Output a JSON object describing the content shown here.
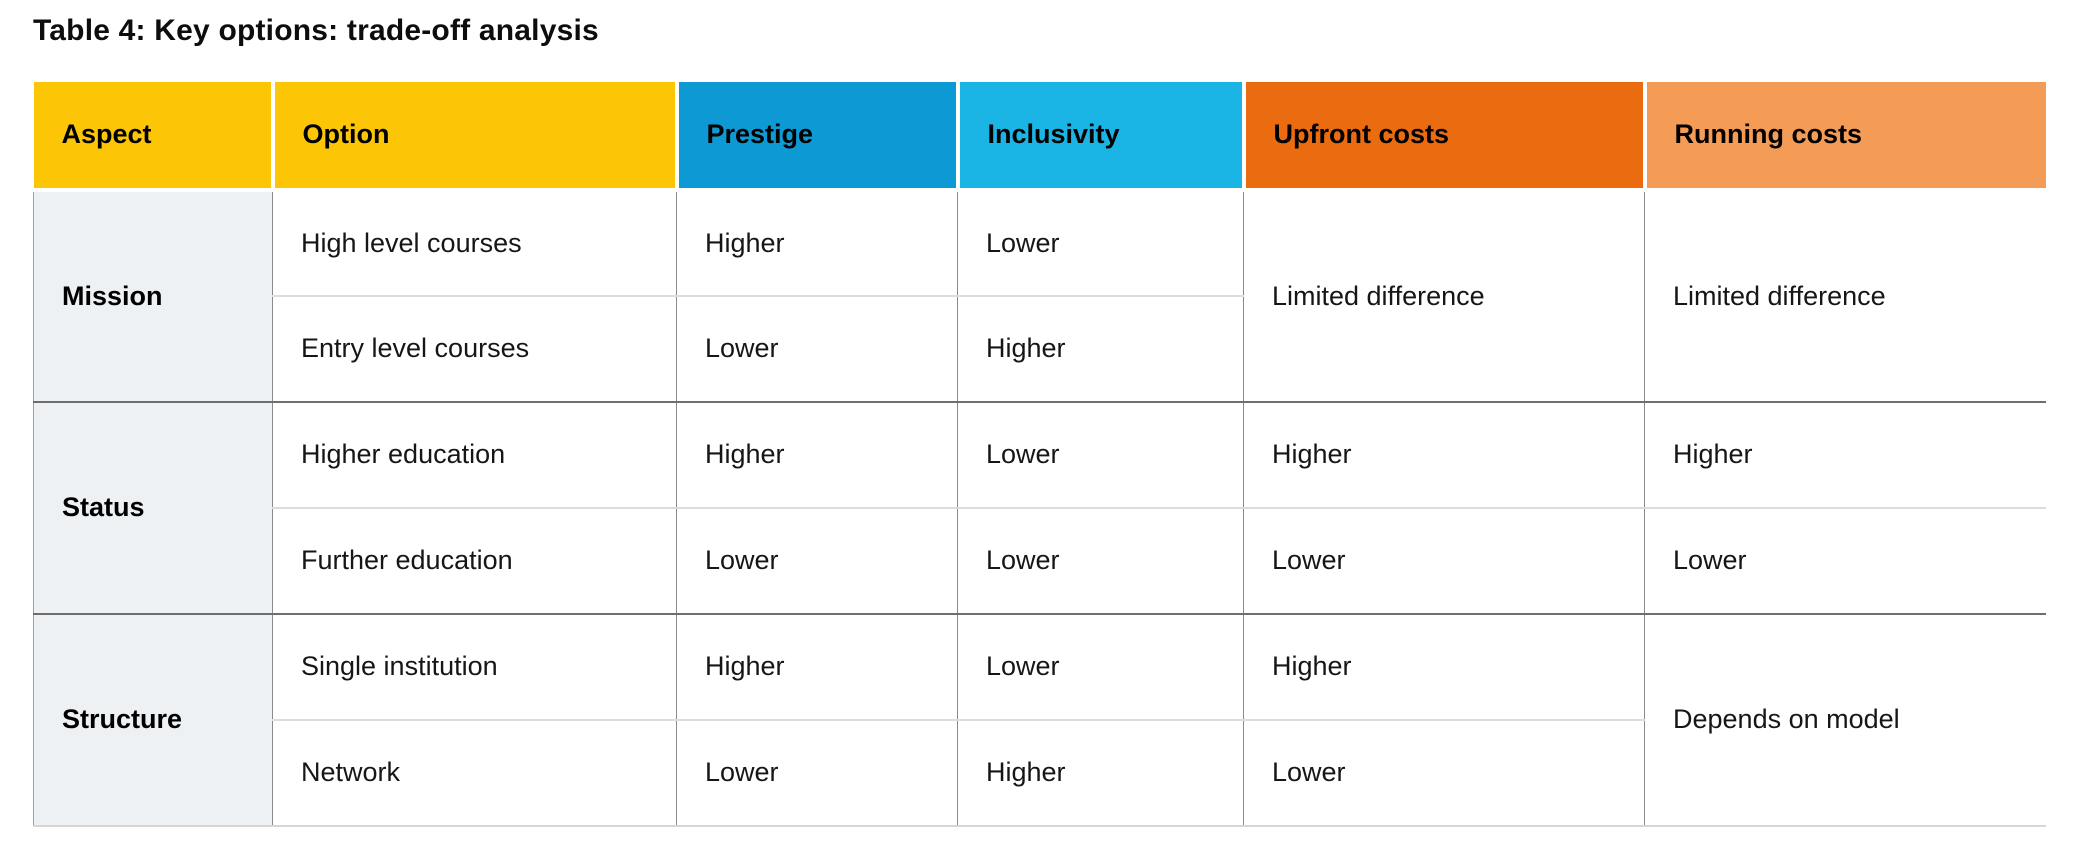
{
  "title": "Table 4: Key options: trade-off analysis",
  "table": {
    "columns": [
      {
        "key": "aspect",
        "label": "Aspect",
        "color": "#fcc606"
      },
      {
        "key": "option",
        "label": "Option",
        "color": "#fcc606"
      },
      {
        "key": "prestige",
        "label": "Prestige",
        "color": "#0d9ad4"
      },
      {
        "key": "inclusivity",
        "label": "Inclusivity",
        "color": "#1ab5e5"
      },
      {
        "key": "upfront",
        "label": "Upfront costs",
        "color": "#eb6b10"
      },
      {
        "key": "running",
        "label": "Running costs",
        "color": "#f49b55"
      }
    ],
    "sections": [
      {
        "aspect": "Mission",
        "rows": [
          {
            "option": "High level courses",
            "prestige": "Higher",
            "inclusivity": "Lower"
          },
          {
            "option": "Entry level courses",
            "prestige": "Lower",
            "inclusivity": "Higher"
          }
        ],
        "upfront_span": "Limited difference",
        "running_span": "Limited difference"
      },
      {
        "aspect": "Status",
        "rows": [
          {
            "option": "Higher education",
            "prestige": "Higher",
            "inclusivity": "Lower",
            "upfront": "Higher",
            "running": "Higher"
          },
          {
            "option": "Further education",
            "prestige": "Lower",
            "inclusivity": "Lower",
            "upfront": "Lower",
            "running": "Lower"
          }
        ]
      },
      {
        "aspect": "Structure",
        "rows": [
          {
            "option": "Single institution",
            "prestige": "Higher",
            "inclusivity": "Lower",
            "upfront": "Higher"
          },
          {
            "option": "Network",
            "prestige": "Lower",
            "inclusivity": "Higher",
            "upfront": "Lower"
          }
        ],
        "running_span": "Depends on model"
      }
    ]
  },
  "colors": {
    "header_yellow": "#fcc606",
    "header_blue_dark": "#0d9ad4",
    "header_blue_light": "#1ab5e5",
    "header_orange_dark": "#eb6b10",
    "header_orange_light": "#f49b55",
    "aspect_cell_background": "#edf1f4",
    "section_divider": "#6e6e6e",
    "row_divider": "#dcdcdc",
    "text": "#161616"
  }
}
